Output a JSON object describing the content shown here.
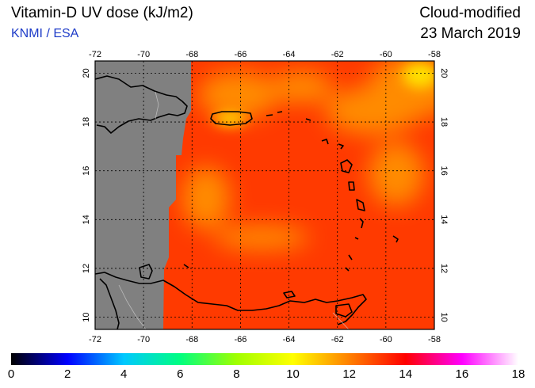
{
  "title": "Vitamin-D UV dose (kJ/m2)",
  "credit": "KNMI / ESA",
  "mode": "Cloud-modified",
  "date": "23 March 2019",
  "map": {
    "lon_range": [
      -72,
      -58
    ],
    "lat_range": [
      9.5,
      20.5
    ],
    "lon_ticks": [
      "-72",
      "-70",
      "-68",
      "-66",
      "-64",
      "-62",
      "-60",
      "-58"
    ],
    "lat_ticks": [
      "10",
      "12",
      "14",
      "16",
      "18",
      "20"
    ],
    "colors": {
      "no_data": "#808080",
      "background_dose": "#ff3a00",
      "high_dose": "#ff9a00",
      "peak_dose": "#ffe000",
      "coastline": "#000000",
      "borders": "#c8c8c8",
      "grid": "#000000"
    }
  },
  "colorbar": {
    "labels": [
      "0",
      "2",
      "4",
      "6",
      "8",
      "10",
      "12",
      "14",
      "16",
      "18"
    ],
    "range": [
      0,
      18
    ],
    "stops": [
      "#000000",
      "#0000ff",
      "#00c8ff",
      "#00ff80",
      "#a0ff00",
      "#ffff00",
      "#ff8000",
      "#ff0000",
      "#ff00ff",
      "#ffffff"
    ]
  }
}
